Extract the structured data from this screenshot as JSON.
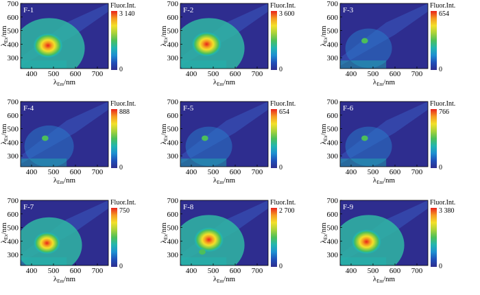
{
  "figure": {
    "colorbar_title": "Fluor.Int.",
    "xlabel_main": "λ",
    "xlabel_sub": "Em",
    "xlabel_unit": "/nm",
    "ylabel_main": "λ",
    "ylabel_sub": "Ex",
    "ylabel_unit": "/nm",
    "xticks": [
      "400",
      "500",
      "600",
      "700"
    ],
    "yticks": [
      "300",
      "400",
      "500",
      "600",
      "700"
    ],
    "colorbar_min_label": "0"
  },
  "chart_data": [
    {
      "type": "heatmap",
      "title": "F-1",
      "max": "3 140",
      "xlim": [
        350,
        750
      ],
      "ylim": [
        220,
        700
      ],
      "peaks": [
        {
          "x": 475,
          "y": 390,
          "intensity": 1.0
        }
      ]
    },
    {
      "type": "heatmap",
      "title": "F-2",
      "max": "3 600",
      "xlim": [
        350,
        750
      ],
      "ylim": [
        220,
        700
      ],
      "peaks": [
        {
          "x": 470,
          "y": 400,
          "intensity": 1.0
        }
      ]
    },
    {
      "type": "heatmap",
      "title": "F-3",
      "max": "654",
      "xlim": [
        350,
        750
      ],
      "ylim": [
        220,
        700
      ],
      "peaks": [
        {
          "x": 462,
          "y": 425,
          "intensity": 0.55
        }
      ]
    },
    {
      "type": "heatmap",
      "title": "F-4",
      "max": "888",
      "xlim": [
        350,
        750
      ],
      "ylim": [
        220,
        700
      ],
      "peaks": [
        {
          "x": 462,
          "y": 430,
          "intensity": 0.6
        }
      ]
    },
    {
      "type": "heatmap",
      "title": "F-5",
      "max": "654",
      "xlim": [
        350,
        750
      ],
      "ylim": [
        220,
        700
      ],
      "peaks": [
        {
          "x": 462,
          "y": 430,
          "intensity": 0.55
        }
      ]
    },
    {
      "type": "heatmap",
      "title": "F-6",
      "max": "766",
      "xlim": [
        350,
        750
      ],
      "ylim": [
        220,
        700
      ],
      "peaks": [
        {
          "x": 462,
          "y": 430,
          "intensity": 0.55
        }
      ]
    },
    {
      "type": "heatmap",
      "title": "F-7",
      "max": "750",
      "xlim": [
        350,
        750
      ],
      "ylim": [
        220,
        700
      ],
      "peaks": [
        {
          "x": 470,
          "y": 385,
          "intensity": 0.9
        }
      ]
    },
    {
      "type": "heatmap",
      "title": "F-8",
      "max": "2 700",
      "xlim": [
        350,
        750
      ],
      "ylim": [
        220,
        700
      ],
      "peaks": [
        {
          "x": 480,
          "y": 410,
          "intensity": 1.0
        },
        {
          "x": 450,
          "y": 320,
          "intensity": 0.7
        }
      ]
    },
    {
      "type": "heatmap",
      "title": "F-9",
      "max": "3 380",
      "xlim": [
        350,
        750
      ],
      "ylim": [
        220,
        700
      ],
      "peaks": [
        {
          "x": 470,
          "y": 395,
          "intensity": 1.0
        }
      ]
    }
  ],
  "colors": {
    "background": "#2e2d8f",
    "scale": [
      "#2e2d8f",
      "#1f4fb8",
      "#1e8fd0",
      "#22b5b0",
      "#4cbf5a",
      "#a8d23a",
      "#f3e02a",
      "#f59a20",
      "#e8231c"
    ]
  }
}
